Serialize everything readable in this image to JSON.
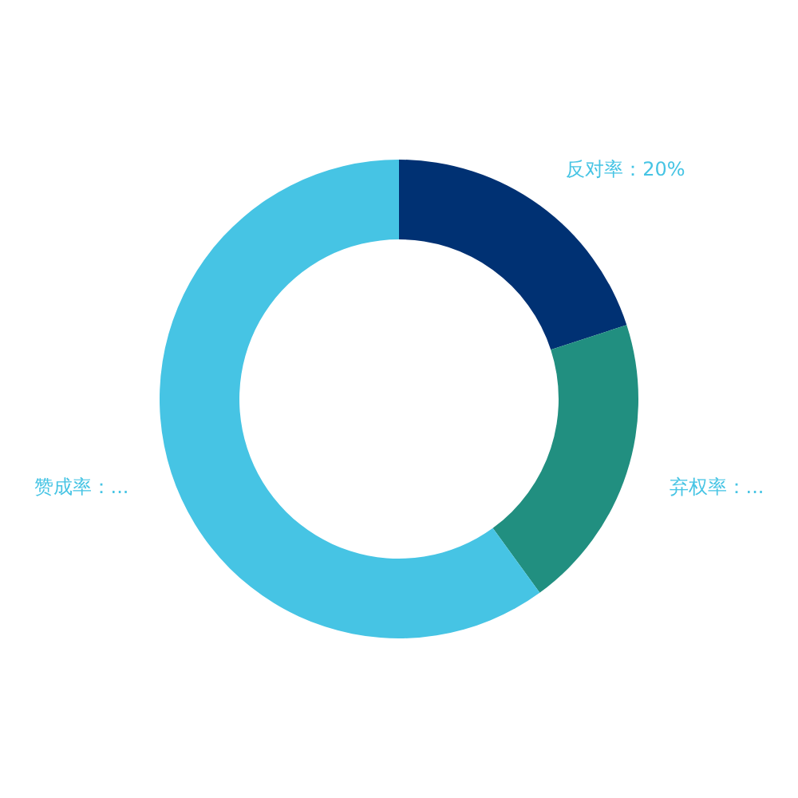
{
  "chart_data": {
    "type": "donut",
    "categories": [
      "反对率",
      "弃权率",
      "赞成率"
    ],
    "values": [
      20,
      20,
      60
    ],
    "value_labels": [
      "20%",
      "...",
      "..."
    ],
    "colors": [
      "#003173",
      "#218f80",
      "#46c4e4"
    ]
  }
}
